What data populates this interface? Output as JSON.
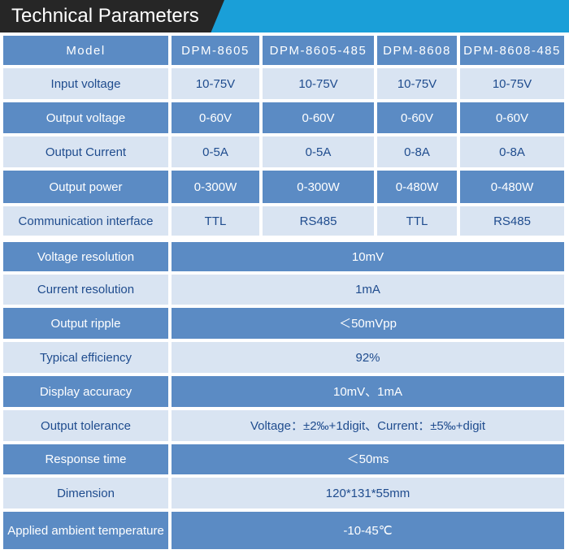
{
  "header": {
    "title": "Technical Parameters"
  },
  "models_row": {
    "label": "Model",
    "models": [
      "DPM-8605",
      "DPM-8605-485",
      "DPM-8608",
      "DPM-8608-485"
    ]
  },
  "model_rows": [
    {
      "label": "Input voltage",
      "values": [
        "10-75V",
        "10-75V",
        "10-75V",
        "10-75V"
      ]
    },
    {
      "label": "Output voltage",
      "values": [
        "0-60V",
        "0-60V",
        "0-60V",
        "0-60V"
      ]
    },
    {
      "label": "Output Current",
      "values": [
        "0-5A",
        "0-5A",
        "0-8A",
        "0-8A"
      ]
    },
    {
      "label": "Output power",
      "values": [
        "0-300W",
        "0-300W",
        "0-480W",
        "0-480W"
      ]
    },
    {
      "label": "Communication interface",
      "values": [
        "TTL",
        "RS485",
        "TTL",
        "RS485"
      ]
    }
  ],
  "shared_rows": [
    {
      "label": "Voltage resolution",
      "value": "10mV"
    },
    {
      "label": "Current resolution",
      "value": "1mA"
    },
    {
      "label": "Output ripple",
      "value": "＜50mVpp"
    },
    {
      "label": "Typical efficiency",
      "value": "92%"
    },
    {
      "label": "Display accuracy",
      "value": "10mV、1mA"
    },
    {
      "label": "Output tolerance",
      "value": "Voltage：±2‰+1digit、Current：±5‰+digit"
    },
    {
      "label": "Response time",
      "value": "＜50ms"
    },
    {
      "label": "Dimension",
      "value": "120*131*55mm"
    },
    {
      "label": "Applied ambient temperature",
      "value": "-10-45℃"
    }
  ],
  "colors": {
    "dark_cell": "#5b8bc4",
    "light_cell": "#d9e4f2",
    "light_text": "#1f4c8e",
    "header_accent": "#1a9fd8",
    "header_title_bg": "#262626"
  }
}
